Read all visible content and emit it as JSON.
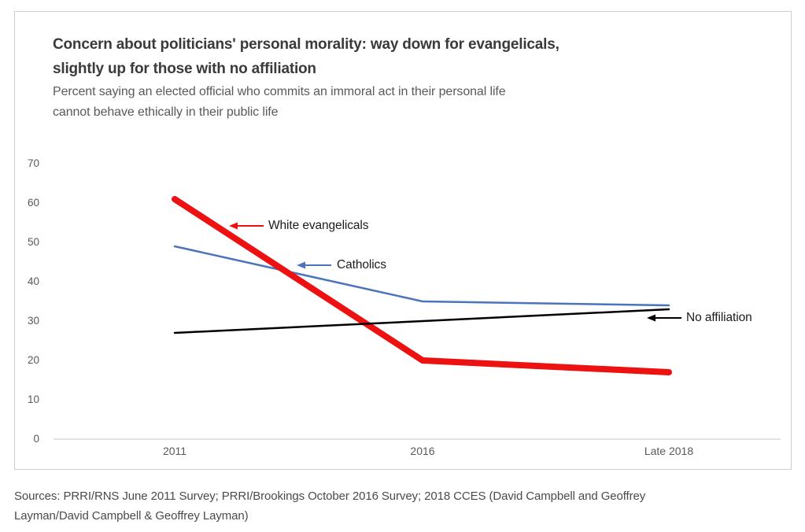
{
  "header": {
    "title_line1": "Concern about politicians' personal morality: way down for evangelicals,",
    "title_line2": "slightly up for those with no affiliation",
    "subtitle_line1": "Percent saying an elected official who commits an immoral act in their personal life",
    "subtitle_line2": "cannot behave ethically in their public life"
  },
  "chart_data": {
    "type": "line",
    "title": "Concern about politicians' personal morality: way down for evangelicals, slightly up for those with no affiliation",
    "subtitle": "Percent saying an elected official who commits an immoral act in their personal life cannot behave ethically in their public life",
    "categories": [
      "2011",
      "2016",
      "Late 2018"
    ],
    "series": [
      {
        "name": "White evangelicals",
        "values": [
          61,
          20,
          17
        ],
        "color": "#ee1111",
        "width": 8
      },
      {
        "name": "Catholics",
        "values": [
          49,
          35,
          34
        ],
        "color": "#4a74bc",
        "width": 2.5
      },
      {
        "name": "No affiliation",
        "values": [
          27,
          30,
          33
        ],
        "color": "#000000",
        "width": 2.5
      }
    ],
    "ylim": [
      0,
      70
    ],
    "yticks": [
      0,
      10,
      20,
      30,
      40,
      50,
      60,
      70
    ],
    "grid": false,
    "legend_position": "inline-annotations-with-arrows",
    "axis_color": "#d9d9d9"
  },
  "footer": {
    "source_line1": "Sources: PRRI/RNS June 2011 Survey; PRRI/Brookings October 2016 Survey; 2018 CCES (David Campbell and Geoffrey",
    "source_line2": "Layman/David Campbell & Geoffrey Layman)"
  }
}
